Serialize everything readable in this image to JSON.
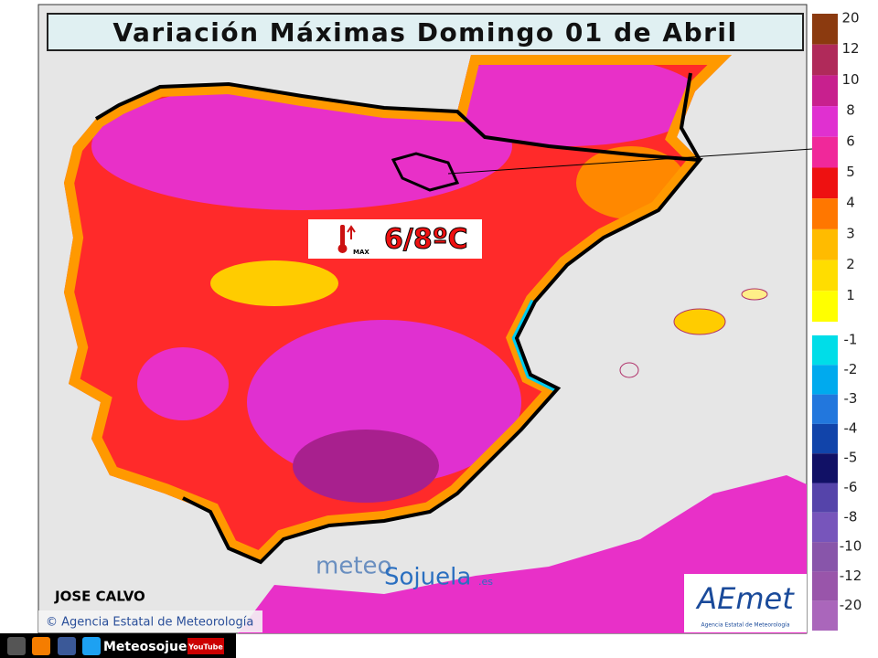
{
  "title": "Variación Máximas Domingo 01 de Abril",
  "annotation": {
    "label": "MAX",
    "value": "6/8ºC"
  },
  "author": "JOSE CALVO",
  "copyright": "© Agencia Estatal de Meteorología",
  "watermark": {
    "part1": "meteo",
    "part2": "Sojuela",
    "suffix": ".es"
  },
  "logo": {
    "name": "AEmet",
    "subtitle": "Agencia Estatal de Meteorología"
  },
  "footer": {
    "brand": "Meteosojuela",
    "youtube": "YouTube"
  },
  "legend": [
    {
      "label": 20,
      "color": "#8b3a0f"
    },
    {
      "label": 12,
      "color": "#b02a5a"
    },
    {
      "label": 10,
      "color": "#c8208e"
    },
    {
      "label": 8,
      "color": "#e030d0"
    },
    {
      "label": 6,
      "color": "#f0289a"
    },
    {
      "label": 5,
      "color": "#ee1111"
    },
    {
      "label": 4,
      "color": "#ff7700"
    },
    {
      "label": 3,
      "color": "#ffbb00"
    },
    {
      "label": 2,
      "color": "#ffdd00"
    },
    {
      "label": 1,
      "color": "#ffff00"
    },
    {
      "label": -1,
      "color": "#00dde8"
    },
    {
      "label": -2,
      "color": "#00aaee"
    },
    {
      "label": -3,
      "color": "#2277dd"
    },
    {
      "label": -4,
      "color": "#1144aa"
    },
    {
      "label": -5,
      "color": "#111166"
    },
    {
      "label": -6,
      "color": "#5544aa"
    },
    {
      "label": -8,
      "color": "#7755bb"
    },
    {
      "label": -10,
      "color": "#8855aa"
    },
    {
      "label": -12,
      "color": "#9955aa"
    },
    {
      "label": -20,
      "color": "#aa66bb"
    }
  ]
}
